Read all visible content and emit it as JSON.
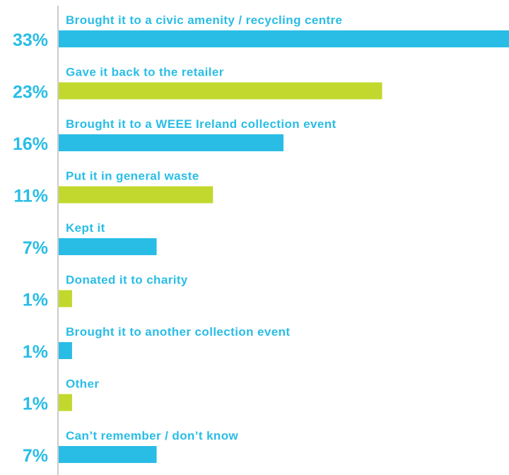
{
  "chart_data": {
    "type": "bar",
    "orientation": "horizontal",
    "categories": [
      "Brought it to a civic amenity / recycling centre",
      "Gave it back to the retailer",
      "Brought it to a WEEE Ireland collection event",
      "Put it in general waste",
      "Kept it",
      "Donated it to charity",
      "Brought it to another collection event",
      "Other",
      "Can’t remember / don’t know"
    ],
    "values": [
      33,
      23,
      16,
      11,
      7,
      1,
      1,
      1,
      7
    ],
    "value_labels": [
      "33%",
      "23%",
      "16%",
      "11%",
      "7%",
      "1%",
      "1%",
      "1%",
      "7%"
    ],
    "bar_colors": [
      "#29bde6",
      "#c2d82e",
      "#29bde6",
      "#c2d82e",
      "#29bde6",
      "#c2d82e",
      "#29bde6",
      "#c2d82e",
      "#29bde6"
    ],
    "label_color": "#29bde6",
    "axis_color": "#cccccc",
    "title": "",
    "xlabel": "",
    "ylabel": "",
    "xlim": [
      0,
      32
    ],
    "grid": false
  }
}
